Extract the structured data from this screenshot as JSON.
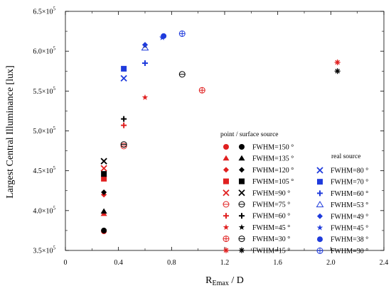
{
  "chart_data": {
    "type": "scatter",
    "xlabel": "R",
    "xlabel_sub": "Emax",
    "xlabel_suffix": " / D",
    "ylabel": "Largest Central Illuminance [lux]",
    "xlim": [
      0,
      2.4
    ],
    "ylim": [
      350000,
      650000
    ],
    "x_ticks": [
      {
        "value": 0,
        "label": "0"
      },
      {
        "value": 0.4,
        "label": "0.4"
      },
      {
        "value": 0.8,
        "label": "0.8"
      },
      {
        "value": 1.2,
        "label": "1.2"
      },
      {
        "value": 1.6,
        "label": "1.6"
      },
      {
        "value": 2.0,
        "label": "2.0"
      },
      {
        "value": 2.4,
        "label": "2.4"
      }
    ],
    "y_ticks": [
      {
        "value": 350000,
        "mant": "3.5×10",
        "exp": "5"
      },
      {
        "value": 400000,
        "mant": "4.0×10",
        "exp": "5"
      },
      {
        "value": 450000,
        "mant": "4.5×10",
        "exp": "5"
      },
      {
        "value": 500000,
        "mant": "5.0×10",
        "exp": "5"
      },
      {
        "value": 550000,
        "mant": "5.5×10",
        "exp": "5"
      },
      {
        "value": 600000,
        "mant": "6.0×10",
        "exp": "5"
      },
      {
        "value": 650000,
        "mant": "6.5×10",
        "exp": "5"
      }
    ],
    "legend_groups": [
      {
        "title": "point / surface source",
        "placement": "center-right"
      },
      {
        "title": "real source",
        "placement": "right"
      }
    ],
    "series": [
      {
        "name": "FWHM=150 °",
        "group": 0,
        "color": "#e02020",
        "marker": "circle",
        "x": 0.29,
        "y": 374000
      },
      {
        "name": "FWHM=135 °",
        "group": 0,
        "color": "#e02020",
        "marker": "triangle",
        "x": 0.29,
        "y": 396000
      },
      {
        "name": "FWHM=120 °",
        "group": 0,
        "color": "#e02020",
        "marker": "diamond",
        "x": 0.29,
        "y": 420000
      },
      {
        "name": "FWHM=105 °",
        "group": 0,
        "color": "#e02020",
        "marker": "square",
        "x": 0.29,
        "y": 440000
      },
      {
        "name": "FWHM=90 °",
        "group": 0,
        "color": "#e02020",
        "marker": "x",
        "x": 0.29,
        "y": 453000
      },
      {
        "name": "FWHM=75 °",
        "group": 0,
        "color": "#e02020",
        "marker": "theta",
        "x": 0.44,
        "y": 481000
      },
      {
        "name": "FWHM=60 °",
        "group": 0,
        "color": "#e02020",
        "marker": "plus",
        "x": 0.44,
        "y": 507000
      },
      {
        "name": "FWHM=45 °",
        "group": 0,
        "color": "#e02020",
        "marker": "star",
        "x": 0.6,
        "y": 542000
      },
      {
        "name": "FWHM=30 °",
        "group": 0,
        "color": "#e02020",
        "marker": "circleplus",
        "x": 1.03,
        "y": 551000
      },
      {
        "name": "FWHM=15 °",
        "group": 0,
        "color": "#e02020",
        "marker": "asterisk",
        "x": 2.05,
        "y": 586000
      },
      {
        "name": "FWHM=150 °",
        "group": 0,
        "color": "#000000",
        "marker": "circle",
        "x": 0.29,
        "y": 375000
      },
      {
        "name": "FWHM=135 °",
        "group": 0,
        "color": "#000000",
        "marker": "triangle",
        "x": 0.29,
        "y": 399000
      },
      {
        "name": "FWHM=120 °",
        "group": 0,
        "color": "#000000",
        "marker": "diamond",
        "x": 0.29,
        "y": 423000
      },
      {
        "name": "FWHM=105 °",
        "group": 0,
        "color": "#000000",
        "marker": "square",
        "x": 0.29,
        "y": 446000
      },
      {
        "name": "FWHM=90 °",
        "group": 0,
        "color": "#000000",
        "marker": "x",
        "x": 0.29,
        "y": 462000
      },
      {
        "name": "FWHM=75 °",
        "group": 0,
        "color": "#000000",
        "marker": "theta",
        "x": 0.44,
        "y": 483000
      },
      {
        "name": "FWHM=60 °",
        "group": 0,
        "color": "#000000",
        "marker": "plus",
        "x": 0.44,
        "y": 515000
      },
      {
        "name": "FWHM=45 °",
        "group": 0,
        "color": "#000000",
        "marker": "star",
        "x": 0.6,
        "y": 607000
      },
      {
        "name": "FWHM=30 °",
        "group": 0,
        "color": "#000000",
        "marker": "theta",
        "x": 0.88,
        "y": 571000
      },
      {
        "name": "FWHM=15 °",
        "group": 0,
        "color": "#000000",
        "marker": "asterisk",
        "x": 2.05,
        "y": 575000
      },
      {
        "name": "FWHM=80 °",
        "group": 1,
        "color": "#1f3bdc",
        "marker": "x",
        "x": 0.44,
        "y": 566000
      },
      {
        "name": "FWHM=70 °",
        "group": 1,
        "color": "#1f3bdc",
        "marker": "square",
        "x": 0.44,
        "y": 578000
      },
      {
        "name": "FWHM=60 °",
        "group": 1,
        "color": "#1f3bdc",
        "marker": "plus",
        "x": 0.6,
        "y": 585000
      },
      {
        "name": "FWHM=53 °",
        "group": 1,
        "color": "#1f3bdc",
        "marker": "triangle-open",
        "x": 0.6,
        "y": 604000
      },
      {
        "name": "FWHM=49 °",
        "group": 1,
        "color": "#1f3bdc",
        "marker": "diamond",
        "x": 0.6,
        "y": 608000
      },
      {
        "name": "FWHM=45 °",
        "group": 1,
        "color": "#1f3bdc",
        "marker": "star",
        "x": 0.73,
        "y": 617000
      },
      {
        "name": "FWHM=38 °",
        "group": 1,
        "color": "#1f3bdc",
        "marker": "circle",
        "x": 0.74,
        "y": 619000
      },
      {
        "name": "FWHM=30 °",
        "group": 1,
        "color": "#1f3bdc",
        "marker": "circleplus",
        "x": 0.88,
        "y": 622000
      }
    ]
  }
}
